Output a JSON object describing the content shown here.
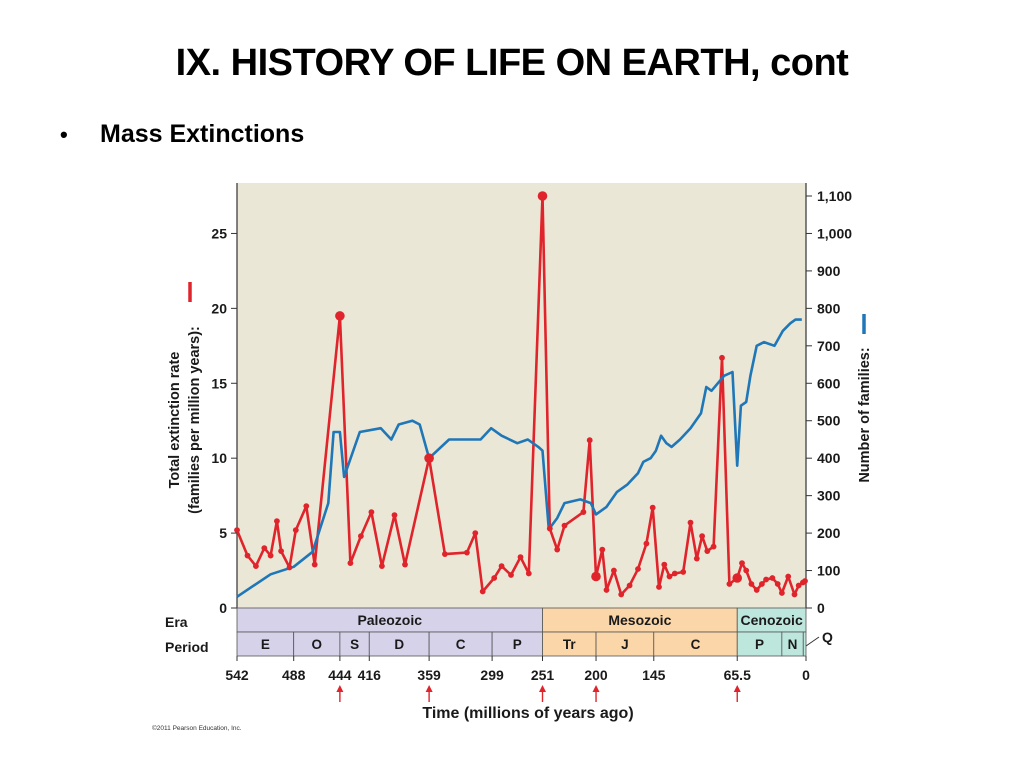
{
  "slide": {
    "title": "IX.  HISTORY OF LIFE ON EARTH, cont",
    "bullet": "Mass Extinctions",
    "copyright": "©2011 Pearson Education, Inc."
  },
  "colors": {
    "extinction": "#e0242b",
    "families": "#1f77b8",
    "plot_bg": "#ebe7d7",
    "paleozoic": "#d6d2ea",
    "mesozoic": "#fbd6a8",
    "cenozoic": "#bde6dc",
    "arrow": "#e0242b"
  },
  "chart_data": {
    "type": "line",
    "xlabel": "Time (millions of years ago)",
    "ylabel_left_line1": "Total extinction rate",
    "ylabel_left_line2": "(families per million years):",
    "ylabel_right": "Number of families:",
    "x_direction": "reversed",
    "xlim": [
      542,
      0
    ],
    "ylim_left": [
      0,
      27.5
    ],
    "ylim_right": [
      0,
      1100
    ],
    "x_ticks": [
      "542",
      "488",
      "444",
      "416",
      "359",
      "299",
      "251",
      "200",
      "145",
      "65.5",
      "0"
    ],
    "y_ticks_left": [
      "0",
      "5",
      "10",
      "15",
      "20",
      "25"
    ],
    "y_ticks_right": [
      "0",
      "100",
      "200",
      "300",
      "400",
      "500",
      "600",
      "700",
      "800",
      "900",
      "1,000",
      "1,100"
    ],
    "mass_extinction_arrows_at": [
      444,
      359,
      251,
      200,
      65.5
    ],
    "era_row_label": "Era",
    "period_row_label": "Period",
    "eras": [
      {
        "name": "Paleozoic",
        "from": 542,
        "to": 251,
        "color_key": "paleozoic"
      },
      {
        "name": "Mesozoic",
        "from": 251,
        "to": 65.5,
        "color_key": "mesozoic"
      },
      {
        "name": "Cenozoic",
        "from": 65.5,
        "to": 0,
        "color_key": "cenozoic"
      }
    ],
    "periods": [
      {
        "name": "E",
        "from": 542,
        "to": 488
      },
      {
        "name": "O",
        "from": 488,
        "to": 444
      },
      {
        "name": "S",
        "from": 444,
        "to": 416
      },
      {
        "name": "D",
        "from": 416,
        "to": 359
      },
      {
        "name": "C",
        "from": 359,
        "to": 299
      },
      {
        "name": "P",
        "from": 299,
        "to": 251
      },
      {
        "name": "Tr",
        "from": 251,
        "to": 200
      },
      {
        "name": "J",
        "from": 200,
        "to": 145
      },
      {
        "name": "C",
        "from": 145,
        "to": 65.5
      },
      {
        "name": "P",
        "from": 65.5,
        "to": 23
      },
      {
        "name": "N",
        "from": 23,
        "to": 2.6
      }
    ],
    "quaternary_label": "Q",
    "series": [
      {
        "key": "extinction",
        "axis": "left",
        "x": [
          542,
          532,
          524,
          516,
          510,
          504,
          500,
          492,
          486,
          476,
          468,
          444,
          434,
          424,
          414,
          404,
          392,
          382,
          359,
          344,
          323,
          315,
          308,
          297,
          290,
          281,
          272,
          264,
          251,
          244,
          237,
          230,
          212,
          206,
          200,
          194,
          190,
          183,
          176,
          168,
          160,
          152,
          146,
          140,
          135,
          130,
          125,
          117,
          110,
          104,
          99,
          94,
          88,
          80,
          73,
          65.5,
          61,
          57,
          52,
          47,
          42,
          38,
          32,
          27,
          23,
          17,
          11,
          7,
          3,
          1
        ],
        "y": [
          5.2,
          3.5,
          2.8,
          4.0,
          3.5,
          5.8,
          3.8,
          2.7,
          5.2,
          6.8,
          2.9,
          19.5,
          3.0,
          4.8,
          6.4,
          2.8,
          6.2,
          2.9,
          10.0,
          3.6,
          3.7,
          5.0,
          1.1,
          2.0,
          2.8,
          2.2,
          3.4,
          2.3,
          27.5,
          5.3,
          3.9,
          5.5,
          6.4,
          11.2,
          2.1,
          3.9,
          1.2,
          2.5,
          0.9,
          1.5,
          2.6,
          4.3,
          6.7,
          1.4,
          2.9,
          2.1,
          2.3,
          2.4,
          5.7,
          3.3,
          4.8,
          3.8,
          4.1,
          16.7,
          1.6,
          2.0,
          3.0,
          2.5,
          1.6,
          1.2,
          1.6,
          1.9,
          2.0,
          1.6,
          1.0,
          2.1,
          0.9,
          1.5,
          1.7,
          1.8
        ]
      },
      {
        "key": "families",
        "axis": "right",
        "x": [
          542,
          510,
          488,
          470,
          455,
          450,
          444,
          440,
          425,
          405,
          395,
          388,
          375,
          368,
          359,
          340,
          310,
          300,
          290,
          275,
          265,
          260,
          255,
          251,
          245,
          237,
          230,
          215,
          205,
          200,
          190,
          180,
          170,
          160,
          155,
          148,
          143,
          138,
          133,
          128,
          120,
          110,
          100,
          95,
          90,
          78,
          70,
          65.5,
          62,
          57,
          53,
          47,
          40,
          30,
          22,
          15,
          10,
          4
        ],
        "y": [
          30,
          90,
          110,
          150,
          280,
          470,
          470,
          350,
          470,
          480,
          450,
          490,
          500,
          490,
          400,
          450,
          450,
          480,
          460,
          440,
          450,
          440,
          430,
          420,
          210,
          240,
          280,
          290,
          280,
          250,
          270,
          310,
          330,
          360,
          390,
          400,
          420,
          460,
          440,
          430,
          450,
          480,
          520,
          590,
          580,
          620,
          630,
          380,
          540,
          550,
          620,
          700,
          710,
          700,
          740,
          760,
          770,
          770
        ]
      }
    ]
  }
}
